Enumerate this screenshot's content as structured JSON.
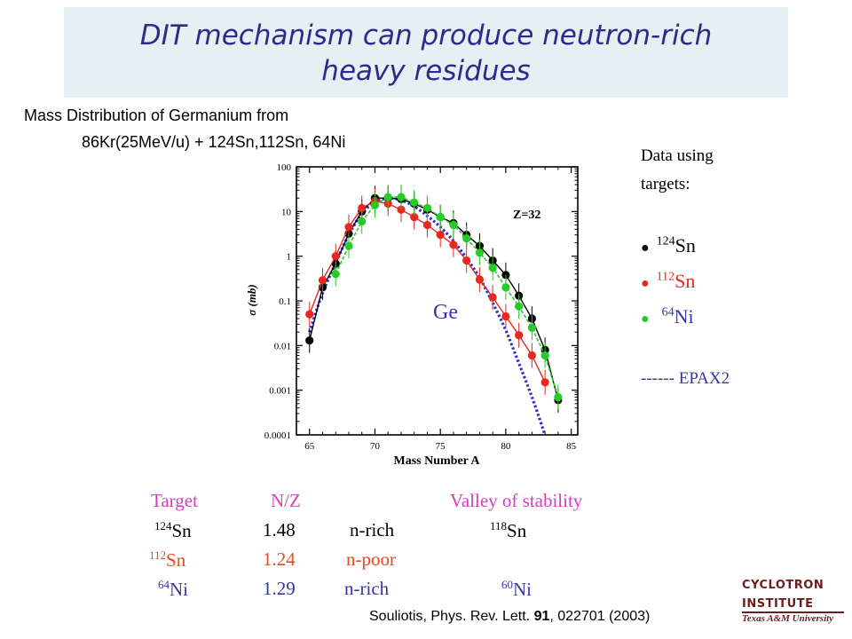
{
  "slide": {
    "title_line1": "DIT mechanism can produce neutron-rich",
    "title_line2": "heavy residues",
    "subtitle_line1": "Mass Distribution of Germanium from",
    "subtitle_line2": "86Kr(25MeV/u) + 124Sn,112Sn, 64Ni",
    "citation_pre": "Souliotis, Phys. Rev. Lett. ",
    "citation_volume": "91",
    "citation_post": ", 022701 (2003)",
    "logo_line1": "CYCLOTRON",
    "logo_line2": "INSTITUTE",
    "logo_line3": "Texas A&M University"
  },
  "legend": {
    "header": "Data using targets:",
    "items": [
      {
        "mass": "124",
        "element": "Sn",
        "color": "#000000"
      },
      {
        "mass": "112",
        "element": "Sn",
        "color": "#e8281e"
      },
      {
        "mass": "64",
        "element": "Ni",
        "color": "#25cc25"
      }
    ],
    "epax": "------ EPAX2"
  },
  "table": {
    "headers": {
      "target": "Target",
      "nz": "N/Z",
      "valley": "Valley of stability"
    },
    "rows": [
      {
        "mass": "124",
        "element": "Sn",
        "nz": "1.48",
        "type": "n-rich",
        "valley_mass": "118",
        "valley_element": "Sn",
        "color": "#000000"
      },
      {
        "mass": "112",
        "element": "Sn",
        "nz": "1.24",
        "type": "n-poor",
        "valley_mass": "",
        "valley_element": "",
        "color": "#e8481e"
      },
      {
        "mass": "64",
        "element": "Ni",
        "nz": "1.29",
        "type": "n-rich",
        "valley_mass": "60",
        "valley_element": "Ni",
        "color": "#000000"
      }
    ],
    "header_color": "#d93bc4"
  },
  "chart_data": {
    "type": "scatter",
    "xlabel": "Mass Number A",
    "ylabel": "σ (mb)",
    "annotation": "Z=32",
    "element_label": "Ge",
    "xlim": [
      64,
      85.5
    ],
    "ylim": [
      0.0001,
      100
    ],
    "yscale": "log",
    "x_ticks": [
      65,
      70,
      75,
      80,
      85
    ],
    "y_ticks": [
      {
        "v": 0.0001,
        "label": "0.0001"
      },
      {
        "v": 0.001,
        "label": "0.001"
      },
      {
        "v": 0.01,
        "label": "0.01"
      },
      {
        "v": 0.1,
        "label": "0.1"
      },
      {
        "v": 1,
        "label": "1"
      },
      {
        "v": 10,
        "label": "10"
      },
      {
        "v": 100,
        "label": "100"
      }
    ],
    "series": [
      {
        "color": "#000000",
        "x": [
          65,
          66,
          67,
          68,
          69,
          70,
          71,
          72,
          73,
          74,
          75,
          76,
          77,
          78,
          79,
          80,
          81,
          82,
          83,
          84
        ],
        "y": [
          0.013,
          0.2,
          0.68,
          3.2,
          10,
          20,
          20,
          19,
          15,
          11,
          7.5,
          5.5,
          3.0,
          1.7,
          0.8,
          0.38,
          0.13,
          0.04,
          0.008,
          0.0006
        ]
      },
      {
        "color": "#e8281e",
        "x": [
          65,
          66,
          67,
          68,
          69,
          70,
          71,
          72,
          73,
          74,
          75,
          76,
          77,
          78,
          79,
          80,
          81,
          82,
          83
        ],
        "y": [
          0.05,
          0.29,
          1.0,
          4.5,
          12,
          17,
          15,
          11,
          7.5,
          5,
          3,
          1.8,
          0.8,
          0.3,
          0.12,
          0.045,
          0.017,
          0.006,
          0.0015
        ]
      },
      {
        "color": "#25cc25",
        "x": [
          67,
          68,
          69,
          70,
          71,
          72,
          73,
          74,
          75,
          76,
          77,
          78,
          79,
          80,
          81,
          82,
          83,
          84
        ],
        "y": [
          0.4,
          1.7,
          6,
          14,
          21,
          21,
          16,
          12,
          7.5,
          5,
          2.5,
          1.2,
          0.55,
          0.2,
          0.075,
          0.025,
          0.006,
          0.0007
        ]
      }
    ],
    "epax": {
      "x": [
        65,
        66,
        67,
        68,
        69,
        70,
        71,
        72,
        73,
        74,
        75,
        76,
        77,
        78,
        79,
        80,
        81,
        82,
        83
      ],
      "y": [
        0.02,
        0.15,
        0.7,
        3.0,
        9,
        16,
        20,
        18,
        13,
        8,
        4.5,
        2.2,
        0.9,
        0.33,
        0.09,
        0.022,
        0.004,
        0.0007,
        0.0001
      ]
    }
  }
}
